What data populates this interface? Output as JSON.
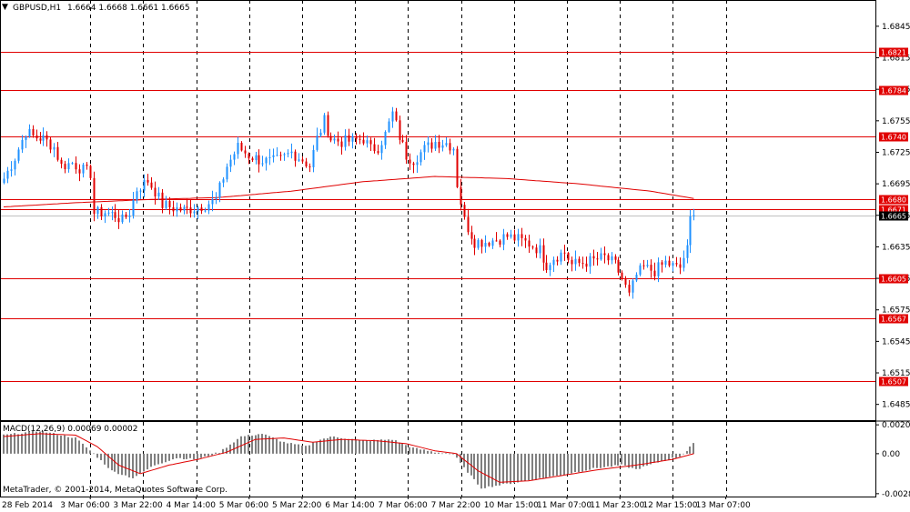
{
  "header": {
    "symbol_tf": "GBPUSD,H1",
    "ohlc": "1.6664 1.6668 1.6661 1.6665"
  },
  "macd_header": {
    "label": "MACD(12,26,9) 0.00069 0.00002"
  },
  "copyright": "MetaTrader, © 2001-2014, MetaQuotes Software Corp.",
  "colors": {
    "background": "#ffffff",
    "up_candle": "#1e90ff",
    "down_candle": "#e00000",
    "level_line": "#e00000",
    "ma_line": "#e00000",
    "histogram": "#808080",
    "signal_line": "#e00000",
    "grid": "#000000",
    "current_price_line": "#c0c0c0",
    "level_tag_bg": "#e00000",
    "current_tag_bg": "#000000"
  },
  "chart_data": [
    {
      "type": "candlestick",
      "title": "GBPUSD,H1",
      "ylim": [
        1.647,
        1.687
      ],
      "y_ticks": [
        "1.6845",
        "1.6815",
        "1.6785",
        "1.6755",
        "1.6725",
        "1.6695",
        "1.6665",
        "1.6635",
        "1.6605",
        "1.6575",
        "1.6545",
        "1.6515",
        "1.6485"
      ],
      "x_ticks": [
        "28 Feb 2014",
        "3 Mar 06:00",
        "3 Mar 22:00",
        "4 Mar 14:00",
        "5 Mar 06:00",
        "5 Mar 22:00",
        "6 Mar 14:00",
        "7 Mar 06:00",
        "7 Mar 22:00",
        "10 Mar 15:00",
        "11 Mar 07:00",
        "11 Mar 23:00",
        "12 Mar 15:00",
        "13 Mar 07:00"
      ],
      "horizontal_levels": [
        {
          "label": "1.6821",
          "value": 1.6821
        },
        {
          "label": "1.6784",
          "value": 1.6784
        },
        {
          "label": "1.6740",
          "value": 1.674
        },
        {
          "label": "1.6680",
          "value": 1.668
        },
        {
          "label": "1.6671",
          "value": 1.6671
        },
        {
          "label": "1.6605",
          "value": 1.6605
        },
        {
          "label": "1.6567",
          "value": 1.6567
        },
        {
          "label": "1.6507",
          "value": 1.6507
        }
      ],
      "current_price": {
        "label": "1.6665",
        "value": 1.6665
      },
      "close_path_anchors": [
        [
          0,
          1.67
        ],
        [
          3,
          1.672
        ],
        [
          6,
          1.6745
        ],
        [
          8,
          1.674
        ],
        [
          11,
          1.6738
        ],
        [
          14,
          1.673
        ],
        [
          16,
          1.6712
        ],
        [
          19,
          1.6715
        ],
        [
          22,
          1.6708
        ],
        [
          24,
          1.6705
        ],
        [
          25,
          1.6667
        ],
        [
          28,
          1.6668
        ],
        [
          31,
          1.6665
        ],
        [
          33,
          1.666
        ],
        [
          35,
          1.6668
        ],
        [
          37,
          1.669
        ],
        [
          40,
          1.6698
        ],
        [
          42,
          1.6688
        ],
        [
          44,
          1.6675
        ],
        [
          47,
          1.6672
        ],
        [
          50,
          1.667
        ],
        [
          53,
          1.6672
        ],
        [
          56,
          1.6675
        ],
        [
          59,
          1.668
        ],
        [
          62,
          1.6712
        ],
        [
          65,
          1.673
        ],
        [
          68,
          1.6722
        ],
        [
          71,
          1.6718
        ],
        [
          74,
          1.6716
        ],
        [
          77,
          1.6718
        ],
        [
          80,
          1.6725
        ],
        [
          83,
          1.6718
        ],
        [
          85,
          1.6712
        ],
        [
          87,
          1.6738
        ],
        [
          89,
          1.6755
        ],
        [
          91,
          1.6738
        ],
        [
          94,
          1.6735
        ],
        [
          97,
          1.6736
        ],
        [
          100,
          1.6738
        ],
        [
          102,
          1.6728
        ],
        [
          104,
          1.673
        ],
        [
          106,
          1.6742
        ],
        [
          108,
          1.6762
        ],
        [
          110,
          1.674
        ],
        [
          112,
          1.6722
        ],
        [
          114,
          1.6718
        ],
        [
          117,
          1.6728
        ],
        [
          120,
          1.6735
        ],
        [
          123,
          1.6734
        ],
        [
          125,
          1.673
        ],
        [
          126,
          1.6695
        ],
        [
          128,
          1.666
        ],
        [
          131,
          1.664
        ],
        [
          134,
          1.664
        ],
        [
          137,
          1.6642
        ],
        [
          140,
          1.6645
        ],
        [
          143,
          1.6642
        ],
        [
          146,
          1.6638
        ],
        [
          149,
          1.6632
        ],
        [
          151,
          1.6618
        ],
        [
          153,
          1.6625
        ],
        [
          156,
          1.663
        ],
        [
          158,
          1.6618
        ],
        [
          161,
          1.662
        ],
        [
          164,
          1.6622
        ],
        [
          167,
          1.6625
        ],
        [
          170,
          1.6618
        ],
        [
          172,
          1.6605
        ],
        [
          174,
          1.6588
        ],
        [
          176,
          1.6608
        ],
        [
          178,
          1.6615
        ],
        [
          181,
          1.6612
        ],
        [
          184,
          1.662
        ],
        [
          187,
          1.6615
        ],
        [
          188,
          1.6615
        ],
        [
          189,
          1.6625
        ],
        [
          190,
          1.6632
        ],
        [
          191,
          1.6668
        ],
        [
          192,
          1.6665
        ]
      ],
      "moving_average_anchors": [
        [
          0,
          1.6673
        ],
        [
          20,
          1.6677
        ],
        [
          40,
          1.668
        ],
        [
          60,
          1.6682
        ],
        [
          80,
          1.6688
        ],
        [
          100,
          1.6697
        ],
        [
          120,
          1.6702
        ],
        [
          140,
          1.67
        ],
        [
          160,
          1.6695
        ],
        [
          180,
          1.6688
        ],
        [
          192,
          1.6681
        ]
      ]
    },
    {
      "type": "bar",
      "title": "MACD(12,26,9) 0.00069 0.00002",
      "ylim": [
        -0.003,
        0.00222
      ],
      "y_ticks": [
        "0.00202",
        "0.00",
        "-0.0028"
      ],
      "histogram_anchors": [
        [
          0,
          0.0013
        ],
        [
          10,
          0.0016
        ],
        [
          20,
          0.0011
        ],
        [
          25,
          0.0
        ],
        [
          30,
          -0.0012
        ],
        [
          36,
          -0.0017
        ],
        [
          42,
          -0.0008
        ],
        [
          48,
          -0.0003
        ],
        [
          54,
          -0.0004
        ],
        [
          60,
          0.0001
        ],
        [
          66,
          0.0012
        ],
        [
          72,
          0.0014
        ],
        [
          78,
          0.0008
        ],
        [
          84,
          0.0005
        ],
        [
          88,
          0.001
        ],
        [
          92,
          0.0012
        ],
        [
          100,
          0.0009
        ],
        [
          108,
          0.001
        ],
        [
          114,
          0.0004
        ],
        [
          120,
          0.0001
        ],
        [
          125,
          0.0
        ],
        [
          128,
          -0.001
        ],
        [
          133,
          -0.0024
        ],
        [
          138,
          -0.0022
        ],
        [
          145,
          -0.0019
        ],
        [
          155,
          -0.0015
        ],
        [
          165,
          -0.001
        ],
        [
          172,
          -0.0008
        ],
        [
          176,
          -0.0011
        ],
        [
          182,
          -0.0006
        ],
        [
          188,
          -0.0002
        ],
        [
          190,
          0.0002
        ],
        [
          191,
          0.0005
        ],
        [
          192,
          0.0007
        ]
      ],
      "signal_anchors": [
        [
          0,
          0.0012
        ],
        [
          10,
          0.0014
        ],
        [
          20,
          0.0013
        ],
        [
          26,
          0.0005
        ],
        [
          32,
          -0.0008
        ],
        [
          38,
          -0.0014
        ],
        [
          46,
          -0.0008
        ],
        [
          54,
          -0.0004
        ],
        [
          62,
          0.0001
        ],
        [
          70,
          0.001
        ],
        [
          78,
          0.0011
        ],
        [
          86,
          0.0008
        ],
        [
          94,
          0.001
        ],
        [
          104,
          0.0009
        ],
        [
          112,
          0.0007
        ],
        [
          120,
          0.0002
        ],
        [
          126,
          0.0
        ],
        [
          132,
          -0.0012
        ],
        [
          138,
          -0.002
        ],
        [
          146,
          -0.0019
        ],
        [
          156,
          -0.0015
        ],
        [
          166,
          -0.0011
        ],
        [
          176,
          -0.0008
        ],
        [
          186,
          -0.0004
        ],
        [
          192,
          0.0
        ]
      ]
    }
  ]
}
